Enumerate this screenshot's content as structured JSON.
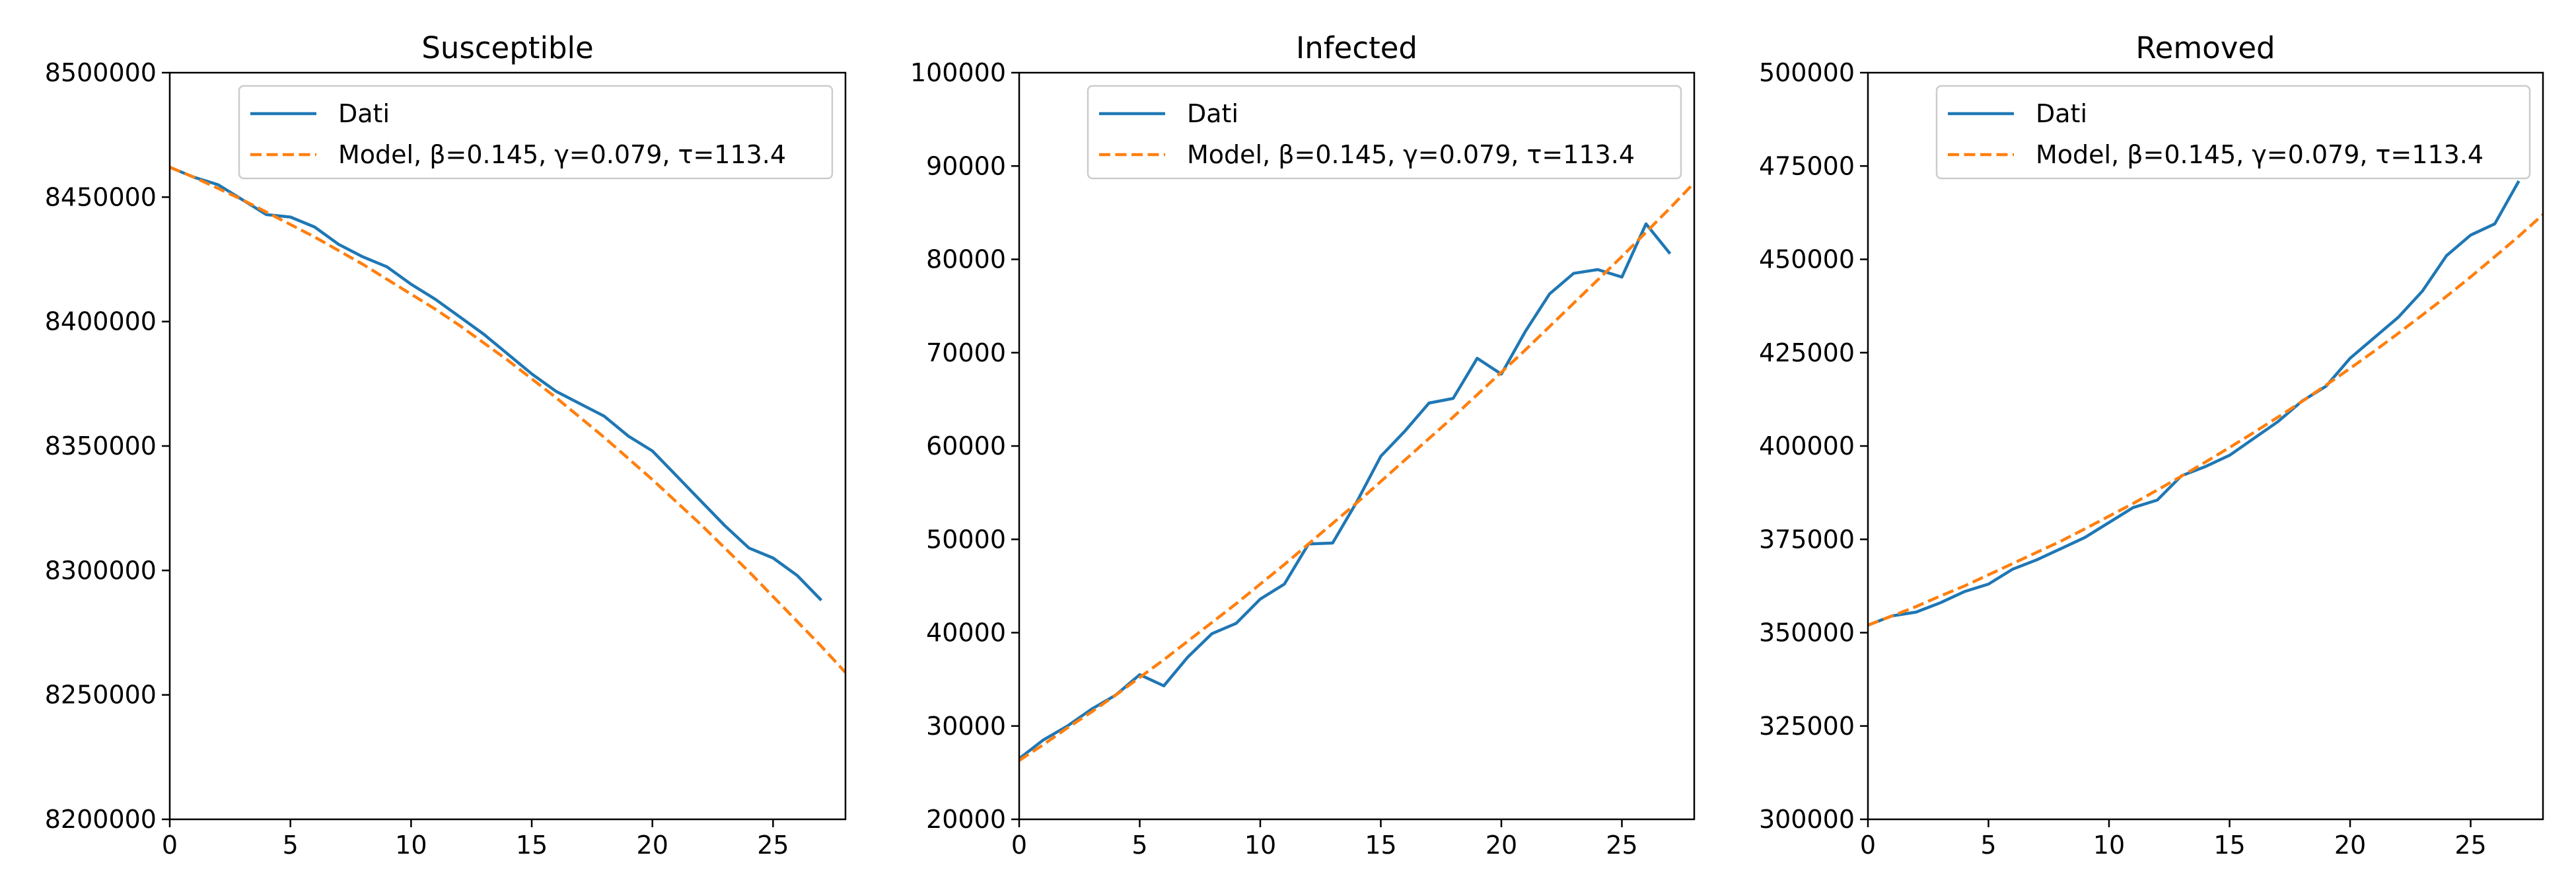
{
  "chart_data": [
    {
      "type": "line",
      "title": "Susceptible",
      "xlabel": "",
      "ylabel": "",
      "xlim": [
        0,
        28
      ],
      "ylim": [
        8200000,
        8500000
      ],
      "xticks": [
        0,
        5,
        10,
        15,
        20,
        25
      ],
      "yticks": [
        8200000,
        8250000,
        8300000,
        8350000,
        8400000,
        8450000,
        8500000
      ],
      "legend": "top-right",
      "series": [
        {
          "name": "Dati",
          "color": "#1f77b4",
          "style": "solid",
          "x": [
            0,
            1,
            2,
            3,
            4,
            5,
            6,
            7,
            8,
            9,
            10,
            11,
            12,
            13,
            14,
            15,
            16,
            17,
            18,
            19,
            20,
            21,
            22,
            23,
            24,
            25,
            26,
            27
          ],
          "y": [
            8462000,
            8458000,
            8455000,
            8449000,
            8443000,
            8442000,
            8438000,
            8431000,
            8426000,
            8422000,
            8415000,
            8409000,
            8402000,
            8395000,
            8387000,
            8379000,
            8372000,
            8367000,
            8362000,
            8354000,
            8348000,
            8338000,
            8328000,
            8318000,
            8309000,
            8305000,
            8298000,
            8288000
          ]
        },
        {
          "name": "Model, β=0.145, γ=0.079, τ=113.4",
          "color": "#ff7f0e",
          "style": "dashed",
          "x": [
            0,
            1,
            2,
            3,
            4,
            5,
            6,
            7,
            8,
            9,
            10,
            11,
            12,
            13,
            14,
            15,
            16,
            17,
            18,
            19,
            20,
            21,
            22,
            23,
            24,
            25,
            26,
            27,
            28
          ],
          "y": [
            8462000,
            8458000,
            8453500,
            8449000,
            8444000,
            8439000,
            8434000,
            8428500,
            8423000,
            8417000,
            8411000,
            8405000,
            8398500,
            8391500,
            8384500,
            8377000,
            8369500,
            8361500,
            8353500,
            8345000,
            8336500,
            8327500,
            8318500,
            8309000,
            8299500,
            8289500,
            8279500,
            8269500,
            8259000
          ]
        }
      ]
    },
    {
      "type": "line",
      "title": "Infected",
      "xlabel": "",
      "ylabel": "",
      "xlim": [
        0,
        28
      ],
      "ylim": [
        20000,
        100000
      ],
      "xticks": [
        0,
        5,
        10,
        15,
        20,
        25
      ],
      "yticks": [
        20000,
        30000,
        40000,
        50000,
        60000,
        70000,
        80000,
        90000,
        100000
      ],
      "legend": "top-right",
      "series": [
        {
          "name": "Dati",
          "color": "#1f77b4",
          "style": "solid",
          "x": [
            0,
            1,
            2,
            3,
            4,
            5,
            6,
            7,
            8,
            9,
            10,
            11,
            12,
            13,
            14,
            15,
            16,
            17,
            18,
            19,
            20,
            21,
            22,
            23,
            24,
            25,
            26,
            27
          ],
          "y": [
            26500,
            28500,
            30000,
            31800,
            33300,
            35500,
            34300,
            37400,
            39900,
            41000,
            43600,
            45200,
            49500,
            49600,
            54000,
            58900,
            61600,
            64600,
            65100,
            69400,
            67700,
            72300,
            76300,
            78500,
            78900,
            78100,
            83800,
            80600
          ]
        },
        {
          "name": "Model, β=0.145, γ=0.079, τ=113.4",
          "color": "#ff7f0e",
          "style": "dashed",
          "x": [
            0,
            1,
            2,
            3,
            4,
            5,
            6,
            7,
            8,
            9,
            10,
            11,
            12,
            13,
            14,
            15,
            16,
            17,
            18,
            19,
            20,
            21,
            22,
            23,
            24,
            25,
            26,
            27,
            28
          ],
          "y": [
            26300,
            28000,
            29800,
            31500,
            33300,
            35200,
            37100,
            39100,
            41100,
            43100,
            45200,
            47300,
            49500,
            51700,
            53900,
            56200,
            58500,
            60800,
            63100,
            65500,
            67900,
            70300,
            72800,
            75300,
            77800,
            80300,
            82900,
            85500,
            88200
          ]
        }
      ]
    },
    {
      "type": "line",
      "title": "Removed",
      "xlabel": "",
      "ylabel": "",
      "xlim": [
        0,
        28
      ],
      "ylim": [
        300000,
        500000
      ],
      "xticks": [
        0,
        5,
        10,
        15,
        20,
        25
      ],
      "yticks": [
        300000,
        325000,
        350000,
        375000,
        400000,
        425000,
        450000,
        475000,
        500000
      ],
      "legend": "top-right",
      "series": [
        {
          "name": "Dati",
          "color": "#1f77b4",
          "style": "solid",
          "x": [
            0,
            1,
            2,
            3,
            4,
            5,
            6,
            7,
            8,
            9,
            10,
            11,
            12,
            13,
            14,
            15,
            16,
            17,
            18,
            19,
            20,
            21,
            22,
            23,
            24,
            25,
            26,
            27
          ],
          "y": [
            352000,
            354500,
            355500,
            358000,
            361000,
            363000,
            367000,
            369500,
            372500,
            375500,
            379500,
            383500,
            385500,
            392000,
            394500,
            397500,
            402000,
            406500,
            412000,
            416000,
            423500,
            429000,
            434500,
            441500,
            451000,
            456500,
            459500,
            471000
          ]
        },
        {
          "name": "Model, β=0.145, γ=0.079, τ=113.4",
          "color": "#ff7f0e",
          "style": "dashed",
          "x": [
            0,
            1,
            2,
            3,
            4,
            5,
            6,
            7,
            8,
            9,
            10,
            11,
            12,
            13,
            14,
            15,
            16,
            17,
            18,
            19,
            20,
            21,
            22,
            23,
            24,
            25,
            26,
            27,
            28
          ],
          "y": [
            352000,
            354500,
            357000,
            359800,
            362500,
            365500,
            368500,
            371500,
            374500,
            377800,
            381200,
            384600,
            388200,
            391900,
            395700,
            399600,
            403600,
            407700,
            411900,
            416300,
            420800,
            425400,
            430200,
            435100,
            440100,
            445300,
            450700,
            456200,
            462000
          ]
        }
      ]
    }
  ]
}
